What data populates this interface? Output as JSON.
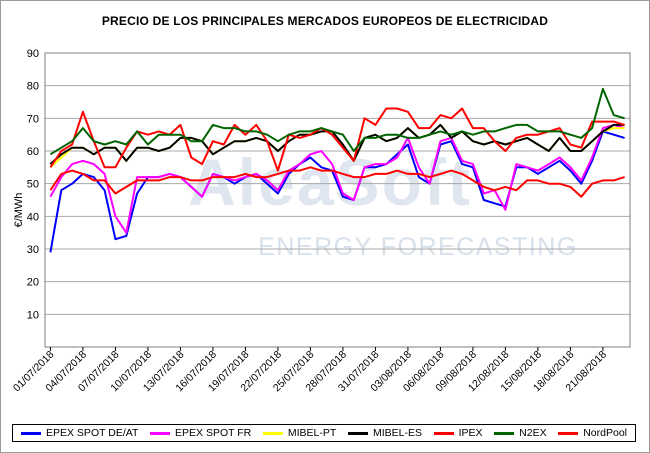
{
  "chart_data": {
    "type": "line",
    "title": "PRECIO DE LOS PRINCIPALES MERCADOS EUROPEOS DE ELECTRICIDAD",
    "ylabel": "€/MWh",
    "xlabel": "",
    "ylim": [
      0,
      90
    ],
    "yticks": [
      10,
      20,
      30,
      40,
      50,
      60,
      70,
      80,
      90
    ],
    "grid": true,
    "legend_position": "bottom",
    "watermark": {
      "brand": "AleaSoft",
      "tagline": "ENERGY FORECASTING"
    },
    "x": [
      "01/07/2018",
      "02/07/2018",
      "03/07/2018",
      "04/07/2018",
      "05/07/2018",
      "06/07/2018",
      "07/07/2018",
      "08/07/2018",
      "09/07/2018",
      "10/07/2018",
      "11/07/2018",
      "12/07/2018",
      "13/07/2018",
      "14/07/2018",
      "15/07/2018",
      "16/07/2018",
      "17/07/2018",
      "18/07/2018",
      "19/07/2018",
      "20/07/2018",
      "21/07/2018",
      "22/07/2018",
      "23/07/2018",
      "24/07/2018",
      "25/07/2018",
      "26/07/2018",
      "27/07/2018",
      "28/07/2018",
      "29/07/2018",
      "30/07/2018",
      "31/07/2018",
      "01/08/2018",
      "02/08/2018",
      "03/08/2018",
      "04/08/2018",
      "05/08/2018",
      "06/08/2018",
      "07/08/2018",
      "08/08/2018",
      "09/08/2018",
      "10/08/2018",
      "11/08/2018",
      "12/08/2018",
      "13/08/2018",
      "14/08/2018",
      "15/08/2018",
      "16/08/2018",
      "17/08/2018",
      "18/08/2018",
      "19/08/2018",
      "20/08/2018",
      "21/08/2018",
      "22/08/2018",
      "23/08/2018"
    ],
    "tick_labels": [
      "01/07/2018",
      "04/07/2018",
      "07/07/2018",
      "10/07/2018",
      "13/07/2018",
      "16/07/2018",
      "19/07/2018",
      "22/07/2018",
      "25/07/2018",
      "28/07/2018",
      "31/07/2018",
      "03/08/2018",
      "06/08/2018",
      "09/08/2018",
      "12/08/2018",
      "15/08/2018",
      "18/08/2018",
      "21/08/2018"
    ],
    "series": [
      {
        "name": "EPEX SPOT DE/AT",
        "color": "#0000ff",
        "values": [
          29,
          48,
          50,
          53,
          52,
          48,
          33,
          34,
          47,
          52,
          52,
          53,
          52,
          49,
          46,
          53,
          52,
          50,
          52,
          53,
          50,
          47,
          53,
          56,
          58,
          55,
          54,
          46,
          45,
          55,
          55,
          56,
          59,
          62,
          52,
          50,
          62,
          63,
          56,
          55,
          45,
          44,
          43,
          55,
          55,
          53,
          55,
          57,
          54,
          50,
          57,
          66,
          65,
          64
        ]
      },
      {
        "name": "EPEX SPOT FR",
        "color": "#ff00ff",
        "values": [
          46,
          52,
          56,
          57,
          56,
          53,
          40,
          35,
          52,
          52,
          52,
          53,
          52,
          49,
          46,
          53,
          52,
          51,
          52,
          53,
          51,
          48,
          54,
          56,
          59,
          60,
          56,
          47,
          45,
          55,
          56,
          56,
          58,
          64,
          55,
          50,
          63,
          64,
          57,
          56,
          47,
          48,
          42,
          56,
          55,
          54,
          56,
          58,
          55,
          51,
          58,
          67,
          68,
          67
        ]
      },
      {
        "name": "MIBEL-PT",
        "color": "#ffff00",
        "values": [
          55,
          58,
          61,
          61,
          59,
          61,
          61,
          57,
          61,
          61,
          60,
          61,
          64,
          64,
          63,
          59,
          61,
          63,
          63,
          64,
          63,
          60,
          63,
          65,
          65,
          66,
          66,
          62,
          57,
          64,
          65,
          63,
          64,
          67,
          64,
          65,
          68,
          64,
          66,
          63,
          62,
          63,
          62,
          63,
          64,
          62,
          60,
          64,
          60,
          60,
          63,
          66,
          67,
          67
        ]
      },
      {
        "name": "MIBEL-ES",
        "color": "#000000",
        "values": [
          56,
          59,
          61,
          61,
          59,
          61,
          61,
          57,
          61,
          61,
          60,
          61,
          64,
          64,
          63,
          59,
          61,
          63,
          63,
          64,
          63,
          60,
          63,
          65,
          65,
          66,
          66,
          62,
          57,
          64,
          65,
          63,
          64,
          67,
          64,
          65,
          68,
          64,
          66,
          63,
          62,
          63,
          62,
          63,
          64,
          62,
          60,
          64,
          60,
          60,
          63,
          66,
          68,
          68
        ]
      },
      {
        "name": "IPEX",
        "color": "#ff0000",
        "values": [
          55,
          60,
          62,
          72,
          63,
          55,
          55,
          61,
          66,
          65,
          66,
          65,
          68,
          58,
          56,
          63,
          62,
          68,
          65,
          68,
          63,
          54,
          65,
          64,
          65,
          67,
          65,
          61,
          57,
          70,
          68,
          73,
          73,
          72,
          67,
          67,
          71,
          70,
          73,
          67,
          67,
          63,
          60,
          64,
          65,
          65,
          66,
          67,
          62,
          61,
          69,
          69,
          69,
          68
        ]
      },
      {
        "name": "N2EX",
        "color": "#006400",
        "values": [
          59,
          61,
          63,
          67,
          63,
          62,
          63,
          62,
          66,
          62,
          65,
          65,
          65,
          63,
          63,
          68,
          67,
          67,
          66,
          66,
          65,
          63,
          65,
          66,
          66,
          67,
          66,
          65,
          60,
          64,
          64,
          65,
          65,
          64,
          64,
          65,
          66,
          65,
          66,
          65,
          66,
          66,
          67,
          68,
          68,
          66,
          66,
          66,
          65,
          64,
          67,
          79,
          71,
          70
        ]
      },
      {
        "name": "NordPool",
        "color": "#ff0000",
        "values": [
          48,
          53,
          54,
          53,
          51,
          51,
          47,
          49,
          51,
          51,
          51,
          52,
          52,
          51,
          51,
          52,
          52,
          52,
          53,
          52,
          52,
          53,
          54,
          54,
          55,
          54,
          54,
          53,
          52,
          52,
          53,
          53,
          54,
          53,
          53,
          52,
          53,
          54,
          53,
          51,
          49,
          48,
          49,
          48,
          51,
          51,
          50,
          50,
          49,
          46,
          50,
          51,
          51,
          52
        ]
      }
    ]
  }
}
